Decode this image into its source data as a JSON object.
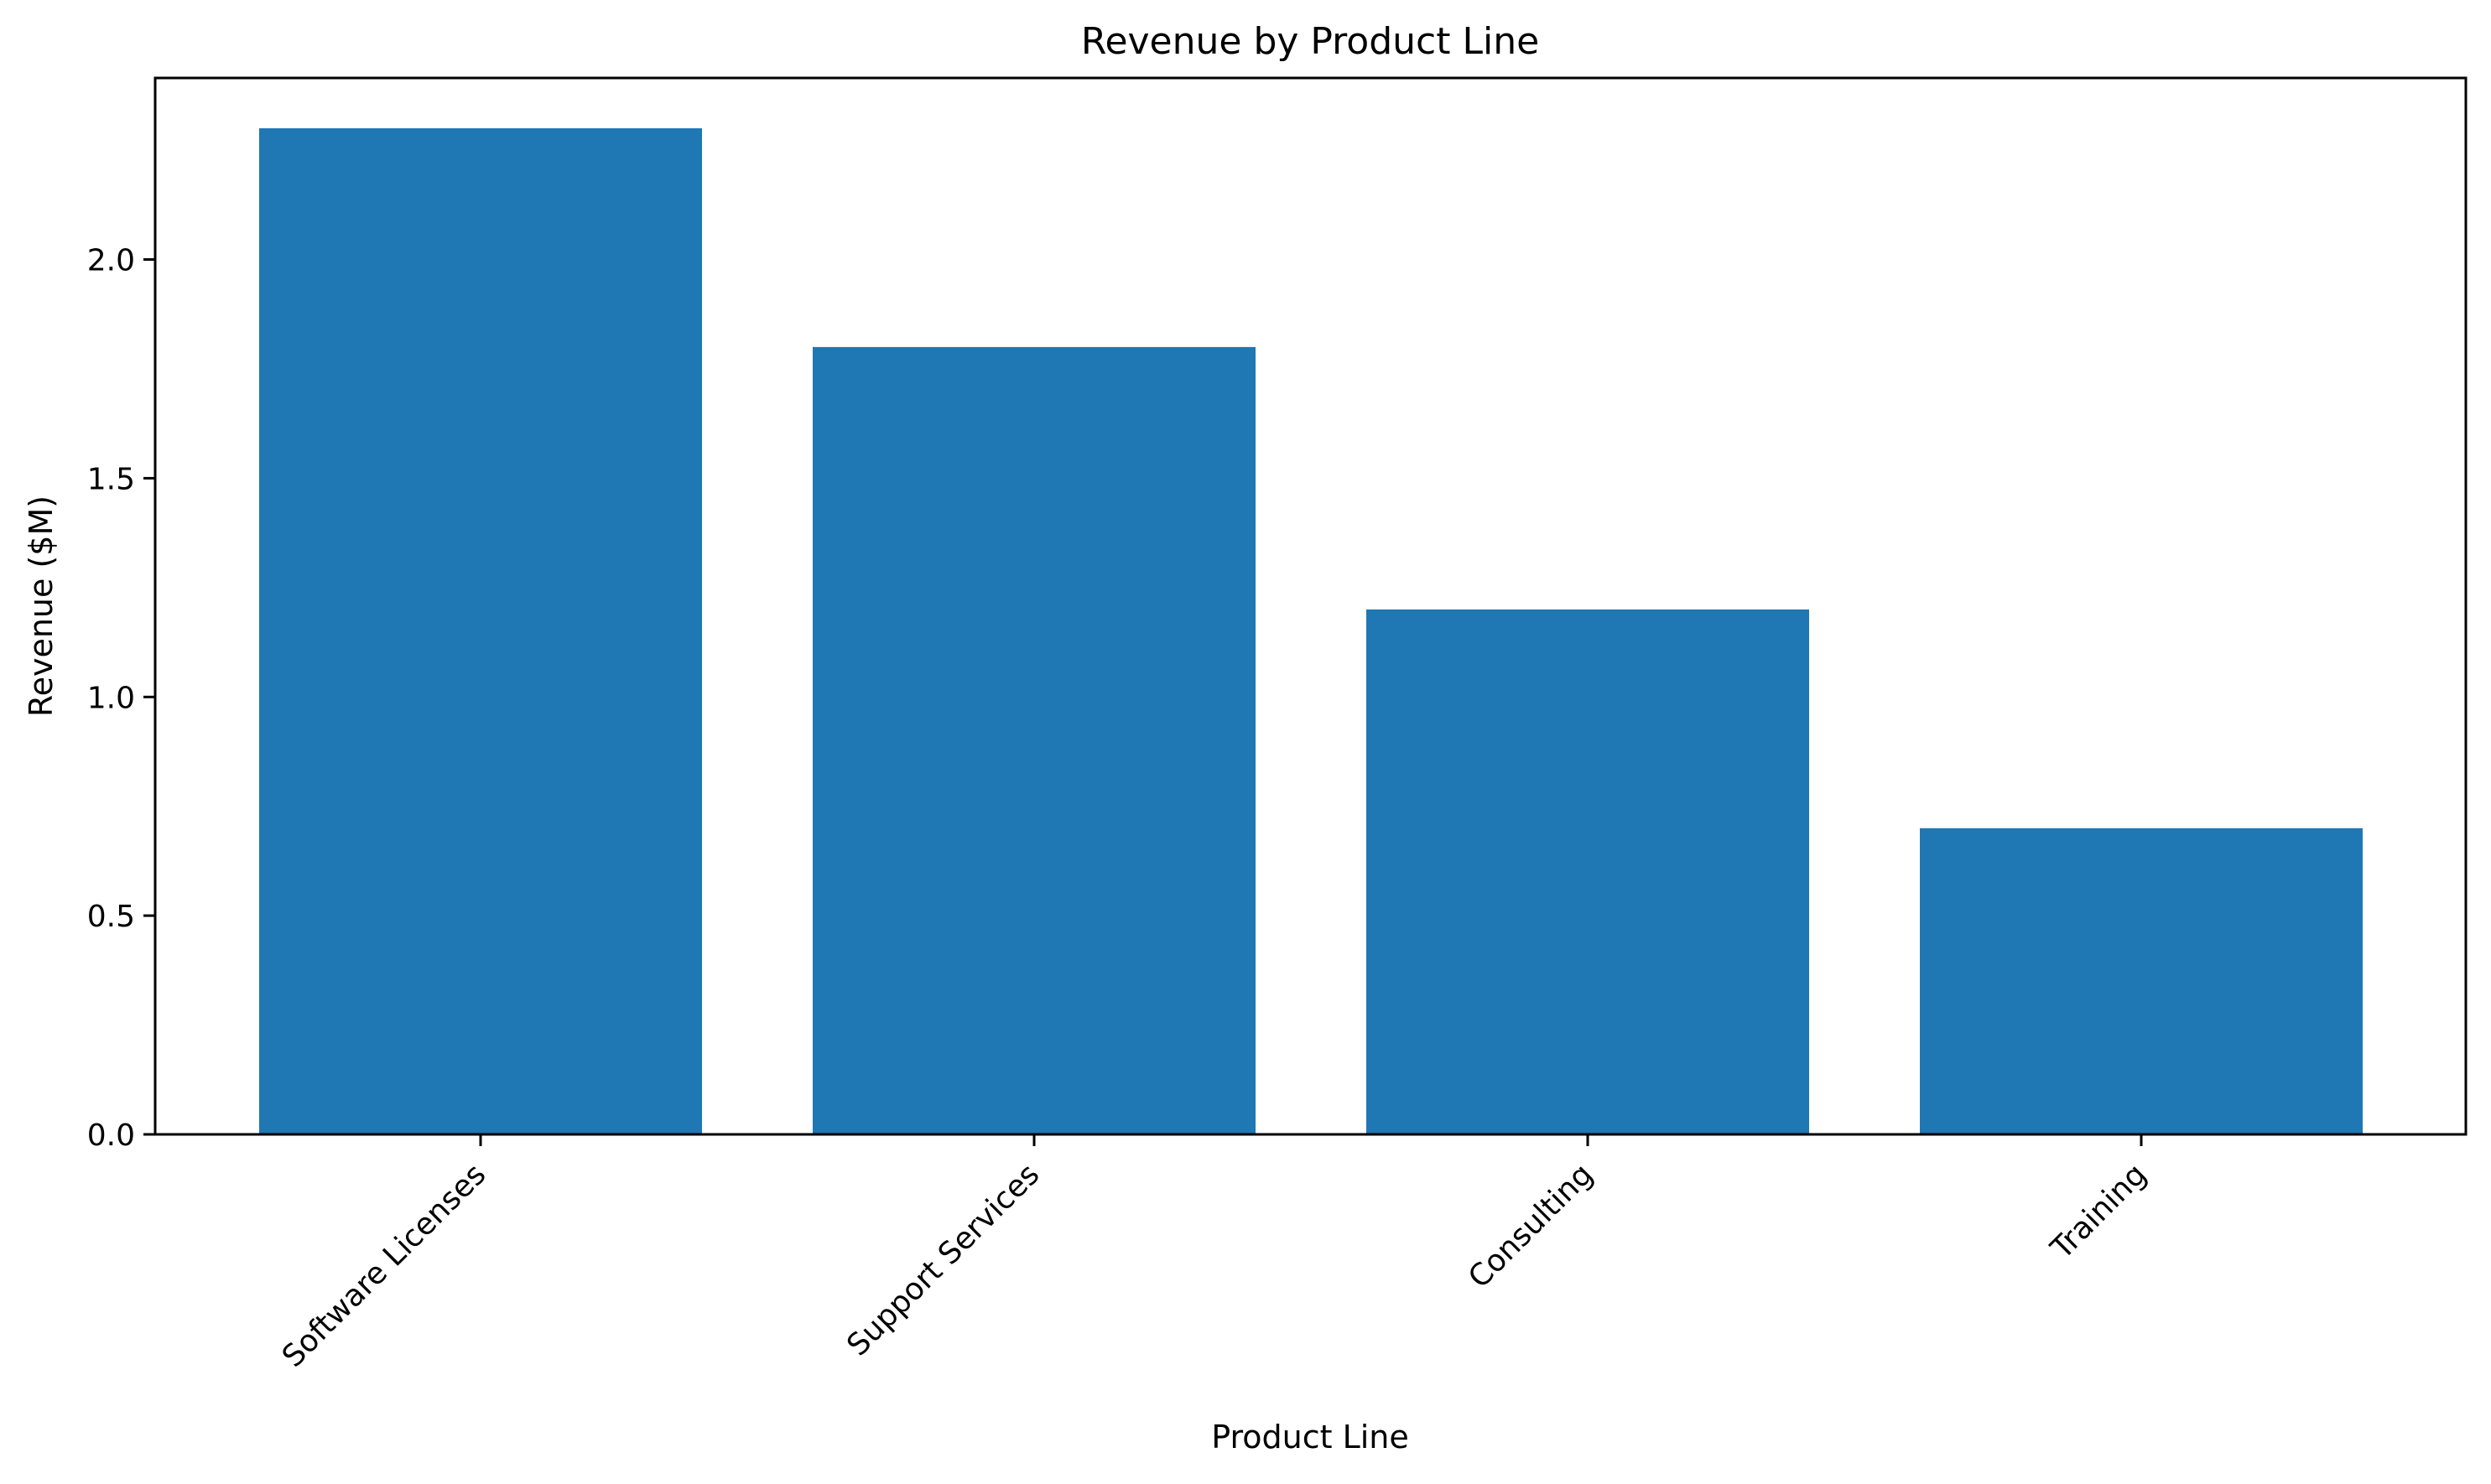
{
  "chart_data": {
    "type": "bar",
    "title": "Revenue by Product Line",
    "xlabel": "Product Line",
    "ylabel": "Revenue ($M)",
    "categories": [
      "Software Licenses",
      "Support Services",
      "Consulting",
      "Training"
    ],
    "values": [
      2.3,
      1.8,
      1.2,
      0.7
    ],
    "ylim": [
      0,
      2.415
    ],
    "yticks": [
      0.0,
      0.5,
      1.0,
      1.5,
      2.0
    ],
    "ytick_labels": [
      "0.0",
      "0.5",
      "1.0",
      "1.5",
      "2.0"
    ],
    "grid": false,
    "bar_color": "#1f77b4",
    "x_tick_rotation_deg": 45
  }
}
